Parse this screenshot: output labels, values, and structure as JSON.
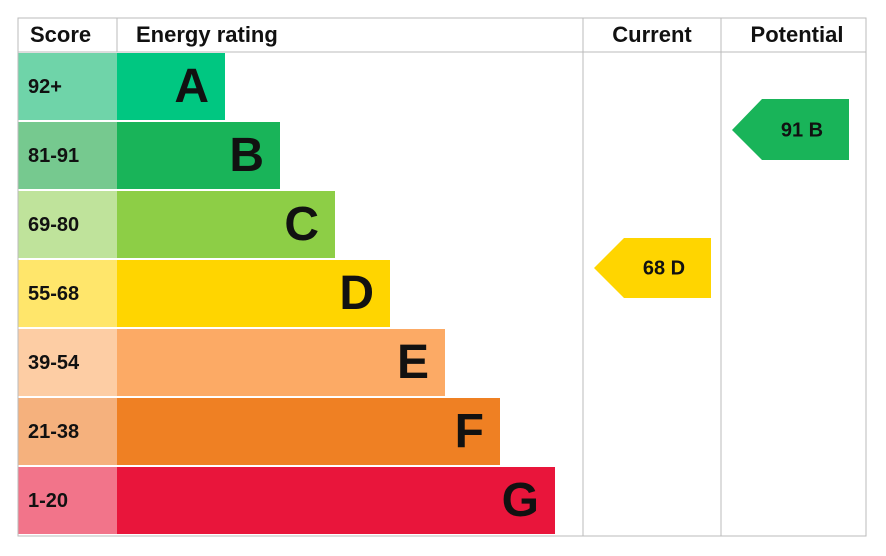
{
  "header": {
    "score": "Score",
    "energy_rating": "Energy rating",
    "current": "Current",
    "potential": "Potential"
  },
  "bands": [
    {
      "score": "92+",
      "letter": "A",
      "color": "#00c781",
      "score_color": "#6fd4a9"
    },
    {
      "score": "81-91",
      "letter": "B",
      "color": "#19b459",
      "score_color": "#76c98f"
    },
    {
      "score": "69-80",
      "letter": "C",
      "color": "#8dce46",
      "score_color": "#bfe39b"
    },
    {
      "score": "55-68",
      "letter": "D",
      "color": "#ffd500",
      "score_color": "#ffe66b"
    },
    {
      "score": "39-54",
      "letter": "E",
      "color": "#fcaa65",
      "score_color": "#fdcda4"
    },
    {
      "score": "21-38",
      "letter": "F",
      "color": "#ef8023",
      "score_color": "#f5b17d"
    },
    {
      "score": "1-20",
      "letter": "G",
      "color": "#e9153b",
      "score_color": "#f2748a"
    }
  ],
  "current": {
    "label": "68 D",
    "color": "#ffd500"
  },
  "potential": {
    "label": "91 B",
    "color": "#19b459"
  }
}
